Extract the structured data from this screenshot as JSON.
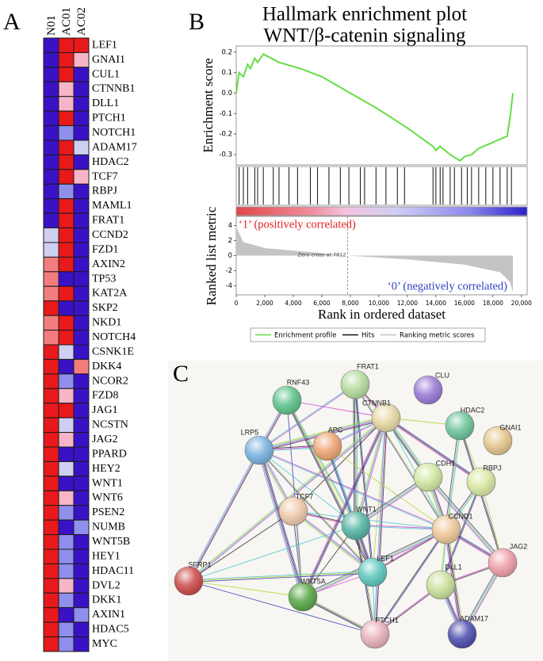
{
  "panel_a": {
    "label": "A",
    "columns": [
      "N01",
      "AC01",
      "AC02"
    ],
    "rows": [
      {
        "gene": "LEF1",
        "colors": [
          "#3a12c6",
          "#e8191b",
          "#e8191b"
        ]
      },
      {
        "gene": "GNAI1",
        "colors": [
          "#3a12c6",
          "#e8191b",
          "#f6b6c8"
        ]
      },
      {
        "gene": "CUL1",
        "colors": [
          "#3a12c6",
          "#e8191b",
          "#3a12c6"
        ]
      },
      {
        "gene": "CTNNB1",
        "colors": [
          "#3a12c6",
          "#f6b6c8",
          "#3a12c6"
        ]
      },
      {
        "gene": "DLL1",
        "colors": [
          "#3a12c6",
          "#f6b6c8",
          "#3a12c6"
        ]
      },
      {
        "gene": "PTCH1",
        "colors": [
          "#3a12c6",
          "#e8191b",
          "#3a12c6"
        ]
      },
      {
        "gene": "NOTCH1",
        "colors": [
          "#3a12c6",
          "#8f8fec",
          "#3a12c6"
        ]
      },
      {
        "gene": "ADAM17",
        "colors": [
          "#3a12c6",
          "#e8191b",
          "#cfcff3"
        ]
      },
      {
        "gene": "HDAC2",
        "colors": [
          "#3a12c6",
          "#e8191b",
          "#3a12c6"
        ]
      },
      {
        "gene": "TCF7",
        "colors": [
          "#3a12c6",
          "#e8191b",
          "#f6b6c8"
        ]
      },
      {
        "gene": "RBPJ",
        "colors": [
          "#3a12c6",
          "#8f8fec",
          "#3a12c6"
        ]
      },
      {
        "gene": "MAML1",
        "colors": [
          "#3a12c6",
          "#e8191b",
          "#3a12c6"
        ]
      },
      {
        "gene": "FRAT1",
        "colors": [
          "#3a12c6",
          "#e8191b",
          "#3a12c6"
        ]
      },
      {
        "gene": "CCND2",
        "colors": [
          "#cfcff3",
          "#e8191b",
          "#3a12c6"
        ]
      },
      {
        "gene": "FZD1",
        "colors": [
          "#cfcff3",
          "#e8191b",
          "#3a12c6"
        ]
      },
      {
        "gene": "AXIN2",
        "colors": [
          "#f27d7d",
          "#e8191b",
          "#3a12c6"
        ]
      },
      {
        "gene": "TP53",
        "colors": [
          "#f27d7d",
          "#3a12c6",
          "#3a12c6"
        ]
      },
      {
        "gene": "KAT2A",
        "colors": [
          "#f27d7d",
          "#e8191b",
          "#3a12c6"
        ]
      },
      {
        "gene": "SKP2",
        "colors": [
          "#e8191b",
          "#3a12c6",
          "#3a12c6"
        ]
      },
      {
        "gene": "NKD1",
        "colors": [
          "#f27d7d",
          "#e8191b",
          "#3a12c6"
        ]
      },
      {
        "gene": "NOTCH4",
        "colors": [
          "#f27d7d",
          "#e8191b",
          "#3a12c6"
        ]
      },
      {
        "gene": "CSNK1E",
        "colors": [
          "#e8191b",
          "#cfcff3",
          "#3a12c6"
        ]
      },
      {
        "gene": "DKK4",
        "colors": [
          "#e8191b",
          "#3a12c6",
          "#f27d7d"
        ]
      },
      {
        "gene": "NCOR2",
        "colors": [
          "#e8191b",
          "#8f8fec",
          "#3a12c6"
        ]
      },
      {
        "gene": "FZD8",
        "colors": [
          "#e8191b",
          "#f6b6c8",
          "#3a12c6"
        ]
      },
      {
        "gene": "JAG1",
        "colors": [
          "#e8191b",
          "#e8191b",
          "#3a12c6"
        ]
      },
      {
        "gene": "NCSTN",
        "colors": [
          "#e8191b",
          "#cfcff3",
          "#3a12c6"
        ]
      },
      {
        "gene": "JAG2",
        "colors": [
          "#e8191b",
          "#f6b6c8",
          "#3a12c6"
        ]
      },
      {
        "gene": "PPARD",
        "colors": [
          "#e8191b",
          "#3a12c6",
          "#3a12c6"
        ]
      },
      {
        "gene": "HEY2",
        "colors": [
          "#e8191b",
          "#cfcff3",
          "#3a12c6"
        ]
      },
      {
        "gene": "WNT1",
        "colors": [
          "#e8191b",
          "#3a12c6",
          "#3a12c6"
        ]
      },
      {
        "gene": "WNT6",
        "colors": [
          "#e8191b",
          "#f6b6c8",
          "#3a12c6"
        ]
      },
      {
        "gene": "PSEN2",
        "colors": [
          "#e8191b",
          "#8f8fec",
          "#3a12c6"
        ]
      },
      {
        "gene": "NUMB",
        "colors": [
          "#e8191b",
          "#3a12c6",
          "#8f8fec"
        ]
      },
      {
        "gene": "WNT5B",
        "colors": [
          "#e8191b",
          "#8f8fec",
          "#3a12c6"
        ]
      },
      {
        "gene": "HEY1",
        "colors": [
          "#e8191b",
          "#8f8fec",
          "#3a12c6"
        ]
      },
      {
        "gene": "HDAC11",
        "colors": [
          "#e8191b",
          "#8f8fec",
          "#3a12c6"
        ]
      },
      {
        "gene": "DVL2",
        "colors": [
          "#e8191b",
          "#f6b6c8",
          "#3a12c6"
        ]
      },
      {
        "gene": "DKK1",
        "colors": [
          "#e8191b",
          "#8f8fec",
          "#3a12c6"
        ]
      },
      {
        "gene": "AXIN1",
        "colors": [
          "#e8191b",
          "#3a12c6",
          "#8f8fec"
        ]
      },
      {
        "gene": "HDAC5",
        "colors": [
          "#e8191b",
          "#8f8fec",
          "#3a12c6"
        ]
      },
      {
        "gene": "MYC",
        "colors": [
          "#e8191b",
          "#8f8fec",
          "#3a12c6"
        ]
      }
    ]
  },
  "chart_data": {
    "type": "line",
    "panel_label": "B",
    "title": "Hallmark enrichment plot",
    "subtitle": "WNT/β-catenin signaling",
    "xlabel": "Rank in ordered dataset",
    "ylabel": "Enrichment score",
    "metric_ylabel": "Ranked list metric",
    "xlim": [
      0,
      20400
    ],
    "ylim": [
      -0.35,
      0.23
    ],
    "metric_ylim": [
      -5.2,
      5.2
    ],
    "xticks": [
      0,
      {
        "value": 2000,
        "label": "2,000"
      },
      {
        "value": 4000,
        "label": "4,000"
      },
      {
        "value": 6000,
        "label": "6,000"
      },
      {
        "value": 8000,
        "label": "8,000"
      },
      {
        "value": 10000,
        "label": "10,000"
      },
      {
        "value": 12000,
        "label": "12,000"
      },
      {
        "value": 14000,
        "label": "14,000"
      },
      {
        "value": 16000,
        "label": "16,000"
      },
      {
        "value": 18000,
        "label": "18,000"
      },
      {
        "value": 20000,
        "label": "20,000"
      }
    ],
    "yticks": [
      0.2,
      0.1,
      {
        "value": 0,
        "label": "0.0"
      },
      -0.1,
      -0.2,
      -0.3
    ],
    "metric_yticks": [
      4,
      2,
      0,
      -2,
      -4
    ],
    "series": [
      {
        "name": "Enrichment profile",
        "color": "#66dd44",
        "x": [
          0,
          200,
          500,
          800,
          1000,
          1300,
          1500,
          1900,
          3000,
          4500,
          6000,
          8000,
          10000,
          12000,
          13800,
          14000,
          14300,
          15000,
          15700,
          16000,
          16500,
          17000,
          18000,
          19000,
          19200,
          19400
        ],
        "values": [
          0.0,
          0.1,
          0.08,
          0.14,
          0.12,
          0.17,
          0.15,
          0.19,
          0.15,
          0.12,
          0.08,
          0.0,
          -0.08,
          -0.17,
          -0.26,
          -0.28,
          -0.26,
          -0.3,
          -0.33,
          -0.31,
          -0.3,
          -0.27,
          -0.24,
          -0.21,
          -0.12,
          0.0
        ]
      }
    ],
    "hits": {
      "name": "Hits",
      "color": "#111111",
      "x": [
        200,
        500,
        800,
        1300,
        1500,
        1900,
        2600,
        3000,
        3700,
        4300,
        5200,
        5700,
        6500,
        7300,
        7900,
        8700,
        9000,
        9800,
        10500,
        11300,
        11800,
        13800,
        14000,
        14300,
        14500,
        15000,
        15300,
        15800,
        16200,
        16500,
        17000,
        17500,
        18000,
        18500,
        19000,
        19300
      ]
    },
    "ranked": {
      "name": "Ranking metric scores",
      "color": "#c4c4c4",
      "x": [
        0,
        500,
        2000,
        5000,
        7812,
        12000,
        16000,
        18500,
        19200,
        19400
      ],
      "values": [
        3.8,
        1.8,
        1.0,
        0.5,
        0,
        -0.5,
        -1.2,
        -2.2,
        -3.5,
        -4.8
      ]
    },
    "positive_label": "‘1’ (positively correlated)",
    "positive_color": "#e02020",
    "negative_label": "‘0’ (negatively correlated)",
    "negative_color": "#3040c0",
    "zero_cross": {
      "value": 7812,
      "label": "Zero cross at 7812"
    }
  },
  "panel_c": {
    "label": "C",
    "nodes": [
      {
        "label": "RNF43",
        "color": "#5cc28a"
      },
      {
        "label": "FRAT1",
        "color": "#b4dc9c"
      },
      {
        "label": "CLU",
        "color": "#9a78d4"
      },
      {
        "label": "CTNNB1",
        "color": "#e6d8a4"
      },
      {
        "label": "HDAC2",
        "color": "#6cc49a"
      },
      {
        "label": "GNAI1",
        "color": "#e6c68c"
      },
      {
        "label": "LRP5",
        "color": "#78b2de"
      },
      {
        "label": "APC",
        "color": "#eea474"
      },
      {
        "label": "CDH1",
        "color": "#d0e8a0"
      },
      {
        "label": "RBPJ",
        "color": "#d8e8a0"
      },
      {
        "label": "TCF7",
        "color": "#f0c8a8"
      },
      {
        "label": "WNT1",
        "color": "#52b4a2"
      },
      {
        "label": "CCND1",
        "color": "#f0c898"
      },
      {
        "label": "JAG2",
        "color": "#ee9ea8"
      },
      {
        "label": "SFRP1",
        "color": "#cc4848"
      },
      {
        "label": "LEF1",
        "color": "#5cc6be"
      },
      {
        "label": "WNT5A",
        "color": "#56a646"
      },
      {
        "label": "DLL1",
        "color": "#c8e098"
      },
      {
        "label": "ADAM17",
        "color": "#4c4cae"
      },
      {
        "label": "PTCH1",
        "color": "#e8b0b8"
      }
    ]
  }
}
